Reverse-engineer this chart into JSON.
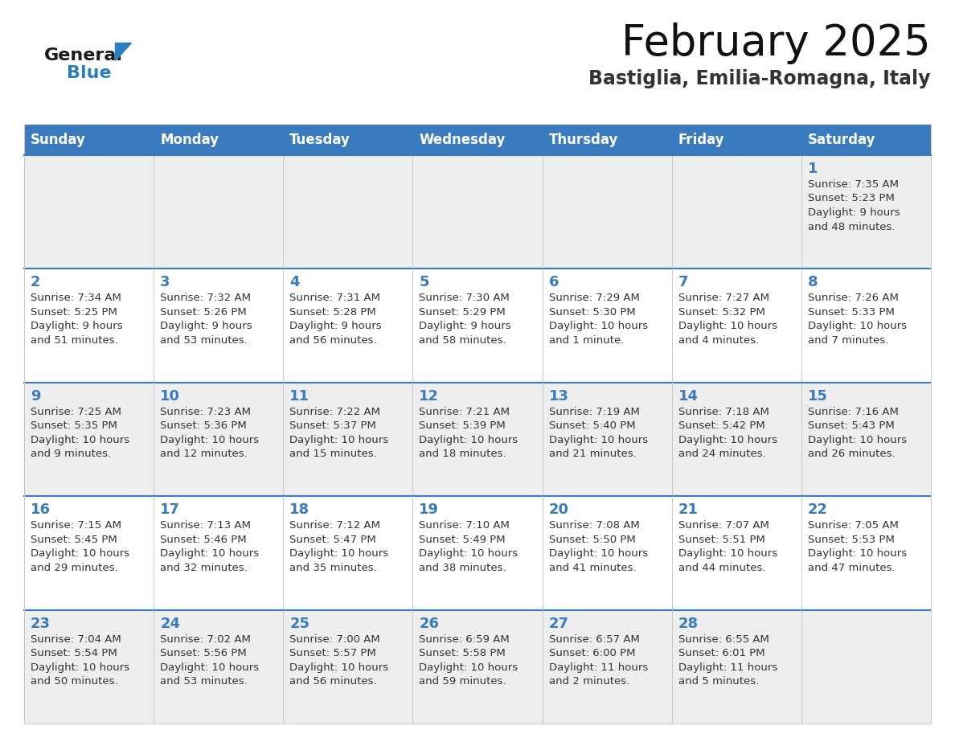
{
  "title": "February 2025",
  "subtitle": "Bastiglia, Emilia-Romagna, Italy",
  "header_color": "#3a7abf",
  "header_text_color": "#ffffff",
  "background_color": "#ffffff",
  "row_bg_even": "#eeeeee",
  "row_bg_odd": "#ffffff",
  "day_number_color": "#3a7abf",
  "cell_text_color": "#333333",
  "grid_color": "#cccccc",
  "row_divider_color": "#3a7abf",
  "weekdays": [
    "Sunday",
    "Monday",
    "Tuesday",
    "Wednesday",
    "Thursday",
    "Friday",
    "Saturday"
  ],
  "logo_general_color": "#1a1a1a",
  "logo_blue_color": "#2a7fc0",
  "title_color": "#111111",
  "subtitle_color": "#333333",
  "days": [
    {
      "day": 1,
      "col": 6,
      "row": 0,
      "sunrise": "7:35 AM",
      "sunset": "5:23 PM",
      "daylight": "9 hours and 48 minutes."
    },
    {
      "day": 2,
      "col": 0,
      "row": 1,
      "sunrise": "7:34 AM",
      "sunset": "5:25 PM",
      "daylight": "9 hours and 51 minutes."
    },
    {
      "day": 3,
      "col": 1,
      "row": 1,
      "sunrise": "7:32 AM",
      "sunset": "5:26 PM",
      "daylight": "9 hours and 53 minutes."
    },
    {
      "day": 4,
      "col": 2,
      "row": 1,
      "sunrise": "7:31 AM",
      "sunset": "5:28 PM",
      "daylight": "9 hours and 56 minutes."
    },
    {
      "day": 5,
      "col": 3,
      "row": 1,
      "sunrise": "7:30 AM",
      "sunset": "5:29 PM",
      "daylight": "9 hours and 58 minutes."
    },
    {
      "day": 6,
      "col": 4,
      "row": 1,
      "sunrise": "7:29 AM",
      "sunset": "5:30 PM",
      "daylight": "10 hours and 1 minute."
    },
    {
      "day": 7,
      "col": 5,
      "row": 1,
      "sunrise": "7:27 AM",
      "sunset": "5:32 PM",
      "daylight": "10 hours and 4 minutes."
    },
    {
      "day": 8,
      "col": 6,
      "row": 1,
      "sunrise": "7:26 AM",
      "sunset": "5:33 PM",
      "daylight": "10 hours and 7 minutes."
    },
    {
      "day": 9,
      "col": 0,
      "row": 2,
      "sunrise": "7:25 AM",
      "sunset": "5:35 PM",
      "daylight": "10 hours and 9 minutes."
    },
    {
      "day": 10,
      "col": 1,
      "row": 2,
      "sunrise": "7:23 AM",
      "sunset": "5:36 PM",
      "daylight": "10 hours and 12 minutes."
    },
    {
      "day": 11,
      "col": 2,
      "row": 2,
      "sunrise": "7:22 AM",
      "sunset": "5:37 PM",
      "daylight": "10 hours and 15 minutes."
    },
    {
      "day": 12,
      "col": 3,
      "row": 2,
      "sunrise": "7:21 AM",
      "sunset": "5:39 PM",
      "daylight": "10 hours and 18 minutes."
    },
    {
      "day": 13,
      "col": 4,
      "row": 2,
      "sunrise": "7:19 AM",
      "sunset": "5:40 PM",
      "daylight": "10 hours and 21 minutes."
    },
    {
      "day": 14,
      "col": 5,
      "row": 2,
      "sunrise": "7:18 AM",
      "sunset": "5:42 PM",
      "daylight": "10 hours and 24 minutes."
    },
    {
      "day": 15,
      "col": 6,
      "row": 2,
      "sunrise": "7:16 AM",
      "sunset": "5:43 PM",
      "daylight": "10 hours and 26 minutes."
    },
    {
      "day": 16,
      "col": 0,
      "row": 3,
      "sunrise": "7:15 AM",
      "sunset": "5:45 PM",
      "daylight": "10 hours and 29 minutes."
    },
    {
      "day": 17,
      "col": 1,
      "row": 3,
      "sunrise": "7:13 AM",
      "sunset": "5:46 PM",
      "daylight": "10 hours and 32 minutes."
    },
    {
      "day": 18,
      "col": 2,
      "row": 3,
      "sunrise": "7:12 AM",
      "sunset": "5:47 PM",
      "daylight": "10 hours and 35 minutes."
    },
    {
      "day": 19,
      "col": 3,
      "row": 3,
      "sunrise": "7:10 AM",
      "sunset": "5:49 PM",
      "daylight": "10 hours and 38 minutes."
    },
    {
      "day": 20,
      "col": 4,
      "row": 3,
      "sunrise": "7:08 AM",
      "sunset": "5:50 PM",
      "daylight": "10 hours and 41 minutes."
    },
    {
      "day": 21,
      "col": 5,
      "row": 3,
      "sunrise": "7:07 AM",
      "sunset": "5:51 PM",
      "daylight": "10 hours and 44 minutes."
    },
    {
      "day": 22,
      "col": 6,
      "row": 3,
      "sunrise": "7:05 AM",
      "sunset": "5:53 PM",
      "daylight": "10 hours and 47 minutes."
    },
    {
      "day": 23,
      "col": 0,
      "row": 4,
      "sunrise": "7:04 AM",
      "sunset": "5:54 PM",
      "daylight": "10 hours and 50 minutes."
    },
    {
      "day": 24,
      "col": 1,
      "row": 4,
      "sunrise": "7:02 AM",
      "sunset": "5:56 PM",
      "daylight": "10 hours and 53 minutes."
    },
    {
      "day": 25,
      "col": 2,
      "row": 4,
      "sunrise": "7:00 AM",
      "sunset": "5:57 PM",
      "daylight": "10 hours and 56 minutes."
    },
    {
      "day": 26,
      "col": 3,
      "row": 4,
      "sunrise": "6:59 AM",
      "sunset": "5:58 PM",
      "daylight": "10 hours and 59 minutes."
    },
    {
      "day": 27,
      "col": 4,
      "row": 4,
      "sunrise": "6:57 AM",
      "sunset": "6:00 PM",
      "daylight": "11 hours and 2 minutes."
    },
    {
      "day": 28,
      "col": 5,
      "row": 4,
      "sunrise": "6:55 AM",
      "sunset": "6:01 PM",
      "daylight": "11 hours and 5 minutes."
    }
  ]
}
